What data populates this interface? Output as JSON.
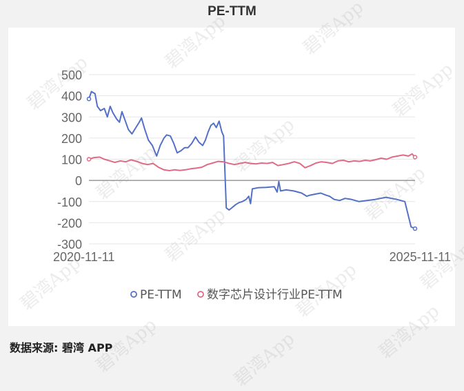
{
  "title": "PE-TTM",
  "source": {
    "label": "数据来源: ",
    "name": "碧湾 APP"
  },
  "watermark": "碧湾App",
  "colors": {
    "series1": "#5470c6",
    "series2": "#e06a83",
    "grid": "#e6e6e6",
    "zero_line": "#666666",
    "tick_text": "#666666"
  },
  "chart_data": {
    "type": "line",
    "title": "PE-TTM",
    "xlabel": "",
    "ylabel": "",
    "x_range": [
      "2020-11-11",
      "2025-11-11"
    ],
    "x_tick_labels": [
      "2020-11-11",
      "2025-11-11"
    ],
    "ylim": [
      -300,
      500
    ],
    "y_ticks": [
      500,
      400,
      300,
      200,
      100,
      0,
      -100,
      -200,
      -300
    ],
    "grid": true,
    "legend": "bottom-center",
    "series": [
      {
        "name": "PE-TTM",
        "color": "#5470c6",
        "points": [
          [
            "2020-11-11",
            385
          ],
          [
            "2020-11-25",
            420
          ],
          [
            "2020-12-15",
            410
          ],
          [
            "2020-12-28",
            350
          ],
          [
            "2021-01-15",
            330
          ],
          [
            "2021-02-05",
            340
          ],
          [
            "2021-02-22",
            300
          ],
          [
            "2021-03-10",
            350
          ],
          [
            "2021-03-25",
            320
          ],
          [
            "2021-04-15",
            290
          ],
          [
            "2021-05-01",
            275
          ],
          [
            "2021-05-15",
            325
          ],
          [
            "2021-06-01",
            285
          ],
          [
            "2021-06-20",
            240
          ],
          [
            "2021-07-10",
            220
          ],
          [
            "2021-08-01",
            250
          ],
          [
            "2021-08-20",
            275
          ],
          [
            "2021-09-01",
            295
          ],
          [
            "2021-09-20",
            240
          ],
          [
            "2021-10-10",
            190
          ],
          [
            "2021-11-01",
            165
          ],
          [
            "2021-11-25",
            115
          ],
          [
            "2021-12-15",
            165
          ],
          [
            "2022-01-05",
            200
          ],
          [
            "2022-01-20",
            215
          ],
          [
            "2022-02-10",
            210
          ],
          [
            "2022-03-01",
            175
          ],
          [
            "2022-03-20",
            130
          ],
          [
            "2022-04-10",
            140
          ],
          [
            "2022-05-01",
            155
          ],
          [
            "2022-05-20",
            155
          ],
          [
            "2022-06-10",
            175
          ],
          [
            "2022-07-01",
            205
          ],
          [
            "2022-07-20",
            180
          ],
          [
            "2022-08-10",
            165
          ],
          [
            "2022-08-25",
            190
          ],
          [
            "2022-09-10",
            230
          ],
          [
            "2022-09-25",
            260
          ],
          [
            "2022-10-10",
            270
          ],
          [
            "2022-10-25",
            250
          ],
          [
            "2022-11-10",
            280
          ],
          [
            "2022-11-25",
            230
          ],
          [
            "2022-12-05",
            210
          ],
          [
            "2022-12-20",
            -130
          ],
          [
            "2023-01-05",
            -140
          ],
          [
            "2023-01-20",
            -130
          ],
          [
            "2023-02-10",
            -115
          ],
          [
            "2023-03-01",
            -105
          ],
          [
            "2023-03-20",
            -100
          ],
          [
            "2023-04-10",
            -90
          ],
          [
            "2023-04-25",
            -75
          ],
          [
            "2023-05-05",
            -110
          ],
          [
            "2023-05-15",
            -40
          ],
          [
            "2023-06-15",
            -35
          ],
          [
            "2023-08-01",
            -33
          ],
          [
            "2023-09-15",
            -30
          ],
          [
            "2023-10-01",
            -55
          ],
          [
            "2023-10-10",
            -5
          ],
          [
            "2023-10-20",
            -50
          ],
          [
            "2023-11-20",
            -45
          ],
          [
            "2024-01-01",
            -50
          ],
          [
            "2024-02-15",
            -60
          ],
          [
            "2024-03-15",
            -75
          ],
          [
            "2024-04-01",
            -70
          ],
          [
            "2024-05-01",
            -65
          ],
          [
            "2024-06-01",
            -60
          ],
          [
            "2024-07-01",
            -70
          ],
          [
            "2024-07-20",
            -75
          ],
          [
            "2024-08-15",
            -90
          ],
          [
            "2024-09-15",
            -95
          ],
          [
            "2024-10-15",
            -85
          ],
          [
            "2024-11-20",
            -90
          ],
          [
            "2025-01-01",
            -100
          ],
          [
            "2025-02-15",
            -95
          ],
          [
            "2025-04-01",
            -90
          ],
          [
            "2025-06-01",
            -80
          ],
          [
            "2025-08-01",
            -90
          ],
          [
            "2025-09-15",
            -100
          ],
          [
            "2025-10-20",
            -220
          ],
          [
            "2025-11-11",
            -228
          ]
        ]
      },
      {
        "name": "数字芯片设计行业PE-TTM",
        "color": "#e06a83",
        "points": [
          [
            "2020-11-11",
            100
          ],
          [
            "2020-12-10",
            108
          ],
          [
            "2021-01-10",
            110
          ],
          [
            "2021-02-05",
            100
          ],
          [
            "2021-03-05",
            93
          ],
          [
            "2021-04-05",
            85
          ],
          [
            "2021-05-05",
            92
          ],
          [
            "2021-06-05",
            88
          ],
          [
            "2021-07-05",
            97
          ],
          [
            "2021-08-05",
            90
          ],
          [
            "2021-09-05",
            80
          ],
          [
            "2021-10-05",
            75
          ],
          [
            "2021-11-05",
            80
          ],
          [
            "2021-12-05",
            62
          ],
          [
            "2022-01-05",
            50
          ],
          [
            "2022-02-05",
            46
          ],
          [
            "2022-03-05",
            50
          ],
          [
            "2022-04-05",
            47
          ],
          [
            "2022-05-05",
            50
          ],
          [
            "2022-06-05",
            55
          ],
          [
            "2022-07-05",
            58
          ],
          [
            "2022-08-05",
            62
          ],
          [
            "2022-09-05",
            75
          ],
          [
            "2022-10-05",
            82
          ],
          [
            "2022-11-05",
            90
          ],
          [
            "2022-12-05",
            88
          ],
          [
            "2023-01-05",
            80
          ],
          [
            "2023-02-05",
            75
          ],
          [
            "2023-03-05",
            80
          ],
          [
            "2023-04-05",
            85
          ],
          [
            "2023-05-05",
            80
          ],
          [
            "2023-06-05",
            78
          ],
          [
            "2023-07-05",
            82
          ],
          [
            "2023-08-05",
            80
          ],
          [
            "2023-09-05",
            85
          ],
          [
            "2023-10-05",
            70
          ],
          [
            "2023-11-05",
            75
          ],
          [
            "2023-12-05",
            80
          ],
          [
            "2024-01-05",
            88
          ],
          [
            "2024-02-05",
            80
          ],
          [
            "2024-03-05",
            60
          ],
          [
            "2024-04-05",
            70
          ],
          [
            "2024-05-05",
            82
          ],
          [
            "2024-06-05",
            88
          ],
          [
            "2024-07-05",
            85
          ],
          [
            "2024-08-05",
            80
          ],
          [
            "2024-09-05",
            92
          ],
          [
            "2024-10-05",
            95
          ],
          [
            "2024-11-05",
            88
          ],
          [
            "2024-12-05",
            92
          ],
          [
            "2025-01-05",
            90
          ],
          [
            "2025-02-05",
            95
          ],
          [
            "2025-03-05",
            92
          ],
          [
            "2025-04-05",
            98
          ],
          [
            "2025-05-05",
            105
          ],
          [
            "2025-06-05",
            100
          ],
          [
            "2025-07-05",
            110
          ],
          [
            "2025-08-05",
            115
          ],
          [
            "2025-09-05",
            120
          ],
          [
            "2025-10-05",
            115
          ],
          [
            "2025-10-25",
            125
          ],
          [
            "2025-11-11",
            110
          ]
        ]
      }
    ]
  }
}
